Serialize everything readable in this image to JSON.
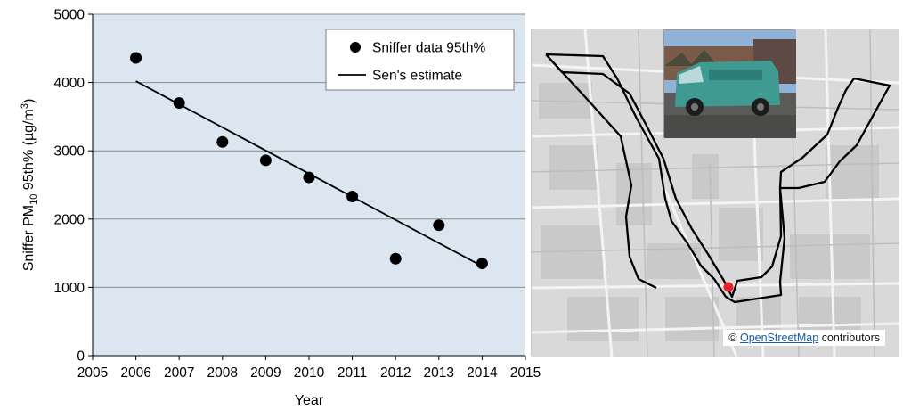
{
  "chart_data": {
    "type": "scatter",
    "x": [
      2006,
      2007,
      2008,
      2009,
      2010,
      2011,
      2012,
      2013,
      2014
    ],
    "series": [
      {
        "name": "Sniffer data 95th%",
        "kind": "scatter",
        "x": [
          2006,
          2007,
          2008,
          2009,
          2010,
          2011,
          2012,
          2013,
          2014
        ],
        "y": [
          4360,
          3700,
          3130,
          2860,
          2610,
          2330,
          1420,
          1910,
          1350
        ]
      },
      {
        "name": "Sen's estimate",
        "kind": "line",
        "x": [
          2006,
          2014
        ],
        "y": [
          4020,
          1310
        ]
      }
    ],
    "xlabel": "Year",
    "ylabel": {
      "pre": "Sniffer  PM",
      "sub": "10",
      "mid": "  95th% (µg/m",
      "sup": "3",
      "post": ")"
    },
    "xlim": [
      2005,
      2015
    ],
    "ylim": [
      0,
      5000
    ],
    "xticks": [
      "2005",
      "2006",
      "2007",
      "2008",
      "2009",
      "2010",
      "2011",
      "2012",
      "2013",
      "2014",
      "2015"
    ],
    "yticks": [
      "0",
      "1000",
      "2000",
      "3000",
      "4000",
      "5000"
    ],
    "grid": "horizontal",
    "legend_position": "top-right",
    "colors": {
      "plot_background": "#dce6f1",
      "marker": "#000000",
      "line": "#000000",
      "grid": "#8c8c8c"
    }
  },
  "map": {
    "attribution_prefix": "© ",
    "attribution_link": "OpenStreetMap",
    "attribution_suffix": " contributors",
    "colors": {
      "route": "#000000",
      "site_marker": "#e8202a",
      "background": "#d6d6d6"
    },
    "inset_photo": "sniffer-van-photo"
  }
}
